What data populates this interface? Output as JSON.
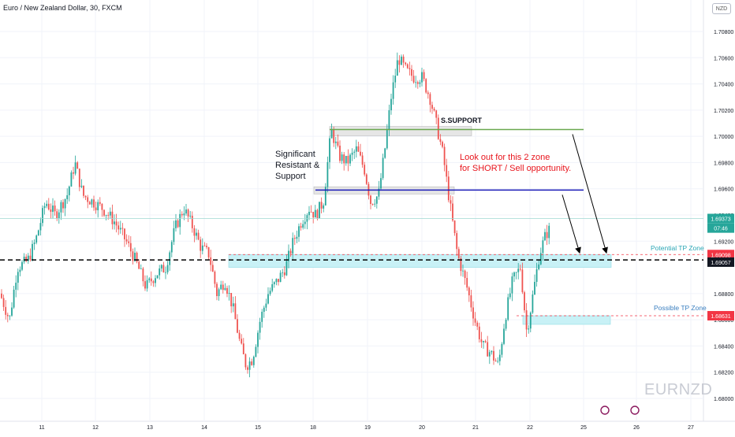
{
  "header": {
    "title": "Euro / New Zealand Dollar, 30, FXCM"
  },
  "watermark": "EURNZD",
  "currency_badge": "NZD",
  "colors": {
    "up": "#26a69a",
    "down": "#ef5350",
    "support_green": "#6aa84f",
    "zone_blue": "#1a1ab8",
    "tp_zone": "#c8f1f6",
    "price_red": "#f23645",
    "price_teal": "#26a69a",
    "annotation_red": "#e8151d",
    "label_blue": "#3a7fc0"
  },
  "chart_data": {
    "type": "candlestick",
    "title": "Euro / New Zealand Dollar, 30, FXCM",
    "x_ticks": [
      "11",
      "12",
      "13",
      "14",
      "15",
      "18",
      "19",
      "20",
      "21",
      "22",
      "25",
      "26",
      "27"
    ],
    "y_ticks": [
      "1.70800",
      "1.70600",
      "1.70400",
      "1.70200",
      "1.70000",
      "1.69800",
      "1.69600",
      "1.69400",
      "1.69200",
      "1.68800",
      "1.68600",
      "1.68400",
      "1.68200",
      "1.68000"
    ],
    "ylim": [
      1.6794,
      1.7098
    ],
    "path": [
      [
        0,
        1.688
      ],
      [
        12,
        1.686
      ],
      [
        22,
        1.69
      ],
      [
        35,
        1.6905
      ],
      [
        45,
        1.692
      ],
      [
        58,
        1.695
      ],
      [
        70,
        1.694
      ],
      [
        85,
        1.6955
      ],
      [
        95,
        1.698
      ],
      [
        105,
        1.6955
      ],
      [
        118,
        1.695
      ],
      [
        130,
        1.6945
      ],
      [
        145,
        1.6935
      ],
      [
        160,
        1.692
      ],
      [
        172,
        1.6905
      ],
      [
        185,
        1.6885
      ],
      [
        198,
        1.6895
      ],
      [
        210,
        1.69
      ],
      [
        222,
        1.693
      ],
      [
        233,
        1.6945
      ],
      [
        245,
        1.693
      ],
      [
        255,
        1.6915
      ],
      [
        265,
        1.691
      ],
      [
        275,
        1.688
      ],
      [
        285,
        1.689
      ],
      [
        295,
        1.687
      ],
      [
        305,
        1.684
      ],
      [
        312,
        1.6825
      ],
      [
        320,
        1.683
      ],
      [
        330,
        1.686
      ],
      [
        340,
        1.688
      ],
      [
        352,
        1.689
      ],
      [
        362,
        1.69
      ],
      [
        372,
        1.692
      ],
      [
        382,
        1.6935
      ],
      [
        392,
        1.6945
      ],
      [
        400,
        1.694
      ],
      [
        410,
        1.695
      ],
      [
        420,
        1.7005
      ],
      [
        430,
        1.6985
      ],
      [
        440,
        1.698
      ],
      [
        452,
        1.699
      ],
      [
        462,
        1.6975
      ],
      [
        470,
        1.695
      ],
      [
        480,
        1.6955
      ],
      [
        488,
        1.699
      ],
      [
        496,
        1.703
      ],
      [
        505,
        1.706
      ],
      [
        515,
        1.705
      ],
      [
        525,
        1.7045
      ],
      [
        535,
        1.7045
      ],
      [
        545,
        1.703
      ],
      [
        553,
        1.701
      ],
      [
        562,
        1.6985
      ],
      [
        570,
        1.695
      ],
      [
        580,
        1.691
      ],
      [
        592,
        1.6885
      ],
      [
        602,
        1.686
      ],
      [
        612,
        1.684
      ],
      [
        622,
        1.6835
      ],
      [
        632,
        1.6825
      ],
      [
        640,
        1.686
      ],
      [
        650,
        1.689
      ],
      [
        660,
        1.69
      ],
      [
        668,
        1.685
      ],
      [
        676,
        1.688
      ],
      [
        684,
        1.691
      ],
      [
        692,
        1.6925
      ],
      [
        698,
        1.693
      ]
    ],
    "levels": [
      {
        "label": "S.SUPPORT",
        "price": 1.70052,
        "color": "#6aa84f"
      },
      {
        "label": "",
        "price": 1.6959,
        "color": "#1a1ab8"
      },
      {
        "label": "",
        "price": 1.69057,
        "color": "#000000",
        "dashed": true
      }
    ],
    "price_labels": [
      {
        "text": "1.69373",
        "price": 1.69373,
        "color": "#26a69a"
      },
      {
        "text": "07:46",
        "price": 1.693,
        "color": "#26a69a"
      },
      {
        "text": "1.69098",
        "price": 1.69098,
        "color": "#f23645"
      },
      {
        "text": "1.69057",
        "price": 1.6904,
        "color": "#131722"
      },
      {
        "text": "1.68631",
        "price": 1.68631,
        "color": "#f23645"
      }
    ],
    "annotations": {
      "sig_line1": "Significant",
      "sig_line2": "Resistant &",
      "sig_line3": "Support",
      "support_label": "S.SUPPORT",
      "lookout_line1": "Look out for this 2 zone",
      "lookout_line2": "for SHORT / Sell opportunity.",
      "potential_tp": "Potential TP Zone",
      "possible_tp": "Possible TP Zone"
    }
  }
}
